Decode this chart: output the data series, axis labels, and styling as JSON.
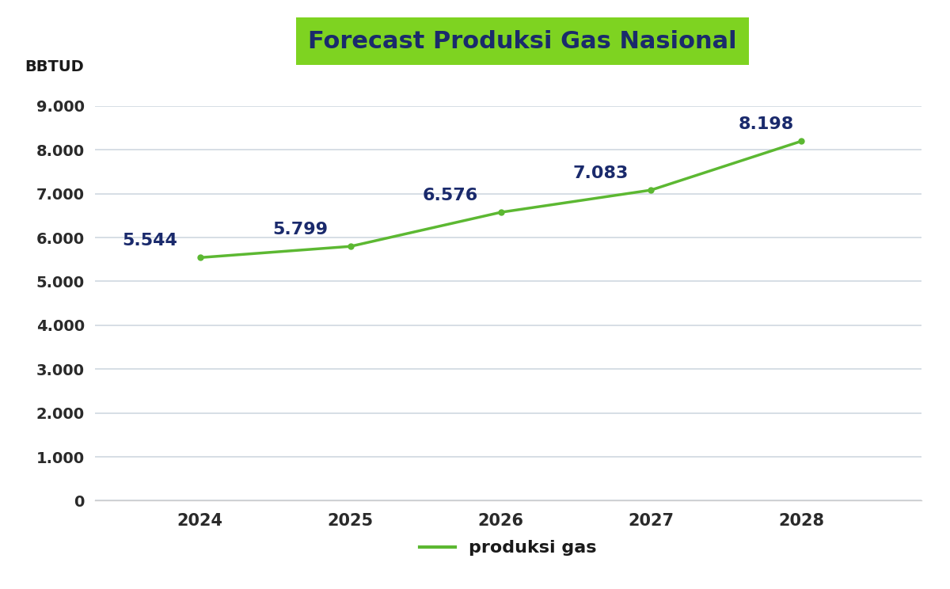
{
  "title": "Forecast Produksi Gas Nasional",
  "ylabel": "BBTUD",
  "years": [
    2024,
    2025,
    2026,
    2027,
    2028
  ],
  "values": [
    5544,
    5799,
    6576,
    7083,
    8198
  ],
  "labels": [
    "5.544",
    "5.799",
    "6.576",
    "7.083",
    "8.198"
  ],
  "line_color": "#5cb832",
  "label_color": "#1a2a6c",
  "title_bg_color": "#7ed321",
  "title_text_color": "#1a2a6c",
  "background_color": "#ffffff",
  "plot_bg_color": "#ffffff",
  "grid_color": "#d0d8e0",
  "ylim": [
    0,
    9000
  ],
  "yticks": [
    0,
    1000,
    2000,
    3000,
    4000,
    5000,
    6000,
    7000,
    8000,
    9000
  ],
  "ytick_labels": [
    "0",
    "1.000",
    "2.000",
    "3.000",
    "4.000",
    "5.000",
    "6.000",
    "7.000",
    "8.000",
    "9.000"
  ],
  "tick_color": "#2a2a2a",
  "legend_label": "produksi gas"
}
